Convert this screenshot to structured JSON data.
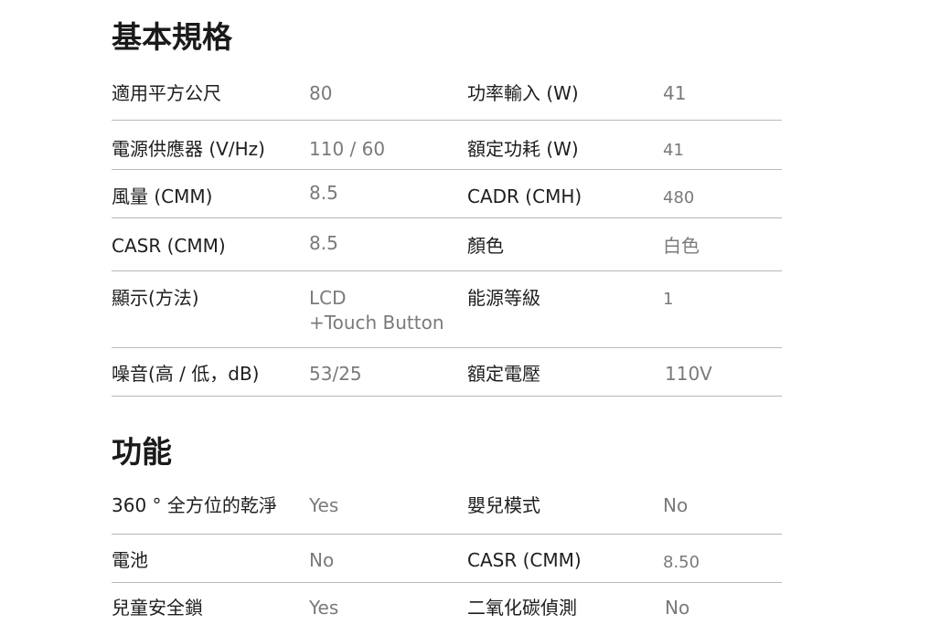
{
  "specs": {
    "title": "基本規格",
    "rows": [
      {
        "l1": "適用平方公尺",
        "v1": "80",
        "l2": "功率輸入 (W)",
        "v2": "41"
      },
      {
        "l1": "電源供應器 (V/Hz)",
        "v1": "110 / 60",
        "l2": "額定功耗 (W)",
        "v2": "41"
      },
      {
        "l1": "風量 (CMM)",
        "v1": "8.5",
        "l2": "CADR (CMH)",
        "v2": "480"
      },
      {
        "l1": "CASR (CMM)",
        "v1": "8.5",
        "l2": "顏色",
        "v2": "白色"
      },
      {
        "l1": "顯示(方法)",
        "v1": "LCD",
        "v1b": "+Touch Button",
        "l2": "能源等級",
        "v2": "1"
      },
      {
        "l1": "噪音(高 / 低，dB)",
        "v1": "53/25",
        "l2": "額定電壓",
        "v2": "110V"
      }
    ]
  },
  "features": {
    "title": "功能",
    "rows": [
      {
        "l1": "360 ° 全方位的乾淨",
        "v1": "Yes",
        "l2": "嬰兒模式",
        "v2": "No"
      },
      {
        "l1": "電池",
        "v1": "No",
        "l2": "CASR (CMM)",
        "v2": "8.50"
      },
      {
        "l1": "兒童安全鎖",
        "v1": "Yes",
        "l2": "二氧化碳偵測",
        "v2": "No"
      }
    ]
  }
}
